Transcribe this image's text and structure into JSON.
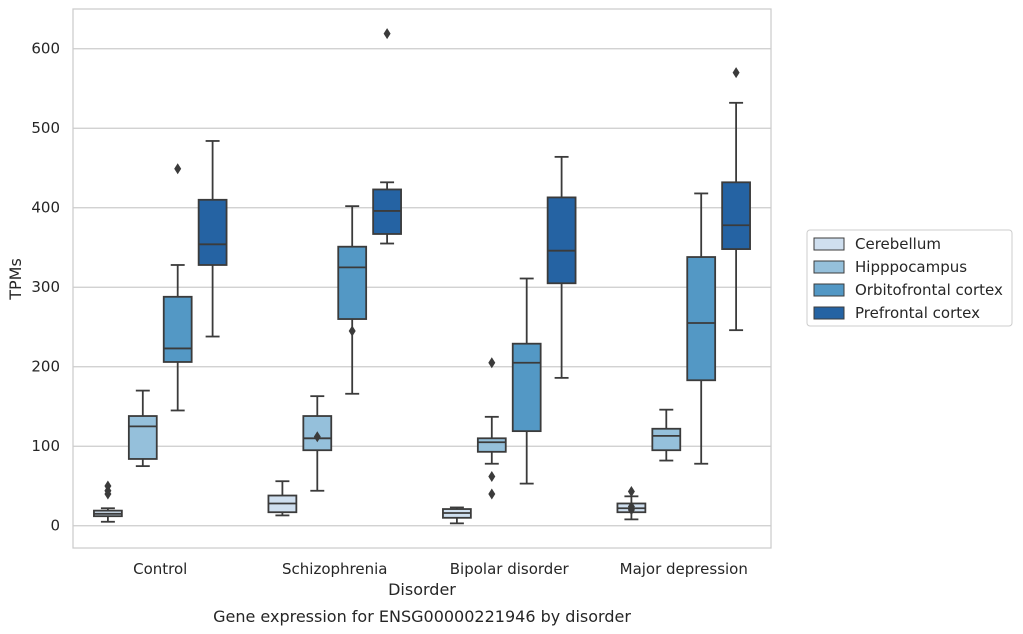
{
  "caption": "Gene expression for ENSG00000221946 by disorder",
  "chart_data": {
    "type": "boxplot",
    "xlabel": "Disorder",
    "ylabel": "TPMs",
    "ylim": [
      -28,
      650
    ],
    "yticks": [
      0,
      100,
      200,
      300,
      400,
      500,
      600
    ],
    "grid": true,
    "legend_position": "right",
    "categories": [
      "Control",
      "Schizophrenia",
      "Bipolar disorder",
      "Major depression"
    ],
    "series": [
      {
        "name": "Cerebellum",
        "color": "#cfdfef",
        "boxes": [
          {
            "whislo": 5,
            "q1": 12,
            "med": 15,
            "q3": 19,
            "whishi": 22,
            "fliers": [
              40,
              44,
              50
            ]
          },
          {
            "whislo": 13,
            "q1": 17,
            "med": 28,
            "q3": 38,
            "whishi": 56,
            "fliers": []
          },
          {
            "whislo": 3,
            "q1": 10,
            "med": 16,
            "q3": 21,
            "whishi": 23,
            "fliers": []
          },
          {
            "whislo": 8,
            "q1": 17,
            "med": 22,
            "q3": 28,
            "whishi": 37,
            "fliers": [
              43,
              20,
              24
            ]
          }
        ]
      },
      {
        "name": "Hipppocampus",
        "color": "#95c0db",
        "boxes": [
          {
            "whislo": 75,
            "q1": 84,
            "med": 125,
            "q3": 138,
            "whishi": 170,
            "fliers": []
          },
          {
            "whislo": 44,
            "q1": 95,
            "med": 110,
            "q3": 138,
            "whishi": 163,
            "fliers": [
              112
            ]
          },
          {
            "whislo": 78,
            "q1": 93,
            "med": 105,
            "q3": 110,
            "whishi": 137,
            "fliers": [
              205,
              62,
              40
            ]
          },
          {
            "whislo": 82,
            "q1": 95,
            "med": 113,
            "q3": 122,
            "whishi": 146,
            "fliers": []
          }
        ]
      },
      {
        "name": "Orbitofrontal cortex",
        "color": "#5398c5",
        "boxes": [
          {
            "whislo": 145,
            "q1": 206,
            "med": 223,
            "q3": 288,
            "whishi": 328,
            "fliers": [
              449
            ]
          },
          {
            "whislo": 166,
            "q1": 260,
            "med": 325,
            "q3": 351,
            "whishi": 402,
            "fliers": [
              245
            ]
          },
          {
            "whislo": 53,
            "q1": 119,
            "med": 205,
            "q3": 229,
            "whishi": 311,
            "fliers": []
          },
          {
            "whislo": 78,
            "q1": 183,
            "med": 255,
            "q3": 338,
            "whishi": 418,
            "fliers": []
          }
        ]
      },
      {
        "name": "Prefrontal cortex",
        "color": "#2563a3",
        "boxes": [
          {
            "whislo": 238,
            "q1": 328,
            "med": 354,
            "q3": 410,
            "whishi": 484,
            "fliers": []
          },
          {
            "whislo": 355,
            "q1": 367,
            "med": 396,
            "q3": 423,
            "whishi": 432,
            "fliers": [
              619
            ]
          },
          {
            "whislo": 186,
            "q1": 305,
            "med": 346,
            "q3": 413,
            "whishi": 464,
            "fliers": []
          },
          {
            "whislo": 246,
            "q1": 348,
            "med": 378,
            "q3": 432,
            "whishi": 532,
            "fliers": [
              570
            ]
          }
        ]
      }
    ]
  }
}
